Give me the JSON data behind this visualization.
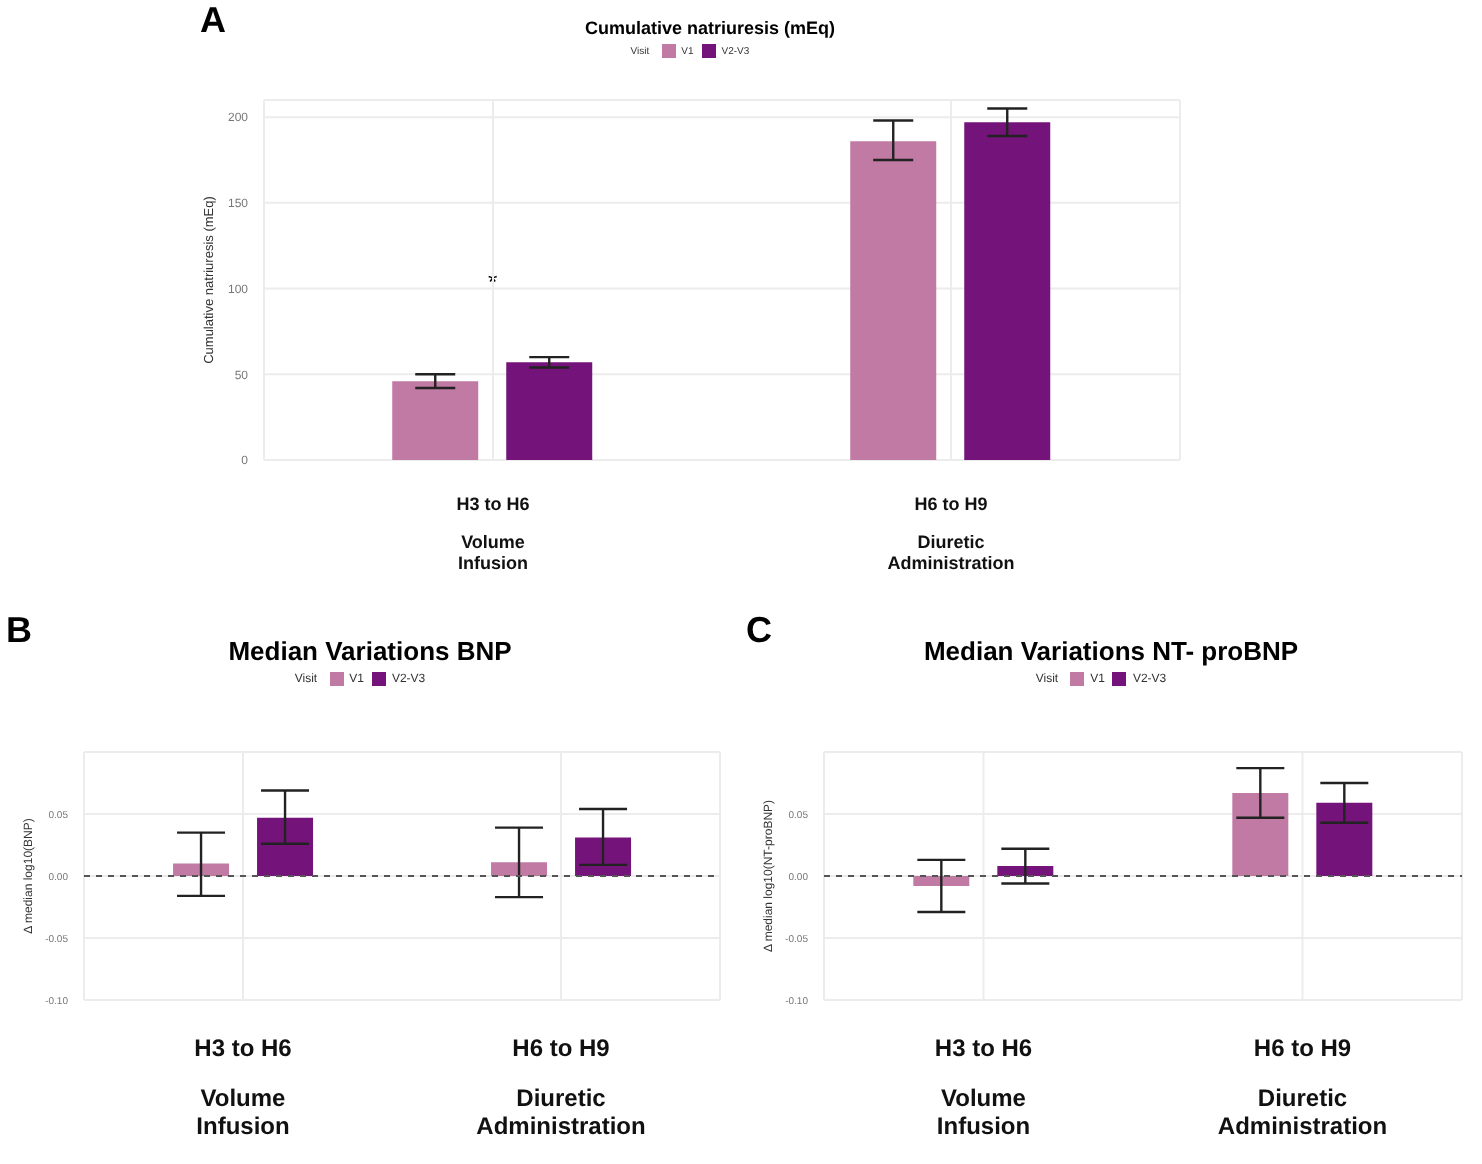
{
  "chart_data": [
    {
      "type": "bar",
      "title": "Cumulative natriuresis (mEq)",
      "ylabel": "Cumulative natriuresis (mEq)",
      "legend_title": "Visit",
      "legend": "top",
      "grid": true,
      "categories": [
        "H3 to H6\nVolume Infusion",
        "H6 to H9\nDiuretic Administration"
      ],
      "series": [
        {
          "name": "V1",
          "color": "#c17aa3",
          "values": [
            46,
            186
          ],
          "errors": [
            [
              42,
              50
            ],
            [
              175,
              198
            ]
          ]
        },
        {
          "name": "V2-V3",
          "color": "#74147a",
          "values": [
            57,
            197
          ],
          "errors": [
            [
              54,
              60
            ],
            [
              189,
              205
            ]
          ]
        }
      ],
      "ylim": [
        0,
        210
      ],
      "yticks": [
        0,
        50,
        100,
        150,
        200
      ],
      "annotations": [
        "A",
        "*"
      ]
    },
    {
      "type": "bar",
      "title": "Median Variations BNP",
      "ylabel": "Δ median log10(BNP)",
      "legend_title": "Visit",
      "legend": "top",
      "grid": true,
      "categories": [
        "H3 to H6\nVolume Infusion",
        "H6 to H9\nDiuretic Administration"
      ],
      "series": [
        {
          "name": "V1",
          "color": "#c17aa3",
          "values": [
            0.01,
            0.011
          ],
          "errors": [
            [
              -0.016,
              0.035
            ],
            [
              -0.017,
              0.039
            ]
          ]
        },
        {
          "name": "V2-V3",
          "color": "#74147a",
          "values": [
            0.047,
            0.031
          ],
          "errors": [
            [
              0.026,
              0.069
            ],
            [
              0.009,
              0.054
            ]
          ]
        }
      ],
      "ylim": [
        -0.1,
        0.1
      ],
      "yticks": [
        {
          "value": -0.1,
          "label": "-0.10"
        },
        {
          "value": -0.05,
          "label": "-0.05"
        },
        {
          "value": 0,
          "label": "0.00"
        },
        {
          "value": 0.05,
          "label": "0.05"
        }
      ],
      "ref_lines": [
        {
          "axis": "y",
          "value": 0,
          "line_style": "dashed",
          "color": "#555555"
        }
      ],
      "annotations": [
        "B"
      ]
    },
    {
      "type": "bar",
      "title": "Median Variations NT- proBNP",
      "ylabel": "Δ median log10(NT-proBNP)",
      "legend_title": "Visit",
      "legend": "top",
      "grid": true,
      "categories": [
        "H3 to H6\nVolume Infusion",
        "H6 to H9\nDiuretic Administration"
      ],
      "series": [
        {
          "name": "V1",
          "color": "#c17aa3",
          "values": [
            -0.008,
            0.067
          ],
          "errors": [
            [
              -0.029,
              0.013
            ],
            [
              0.047,
              0.087
            ]
          ]
        },
        {
          "name": "V2-V3",
          "color": "#74147a",
          "values": [
            0.008,
            0.059
          ],
          "errors": [
            [
              -0.006,
              0.022
            ],
            [
              0.043,
              0.075
            ]
          ]
        }
      ],
      "ylim": [
        -0.1,
        0.1
      ],
      "yticks": [
        {
          "value": -0.1,
          "label": "-0.10"
        },
        {
          "value": -0.05,
          "label": "-0.05"
        },
        {
          "value": 0,
          "label": "0.00"
        },
        {
          "value": 0.05,
          "label": "0.05"
        }
      ],
      "ref_lines": [
        {
          "axis": "y",
          "value": 0,
          "line_style": "dashed",
          "color": "#555555"
        }
      ],
      "annotations": [
        "C"
      ]
    }
  ]
}
